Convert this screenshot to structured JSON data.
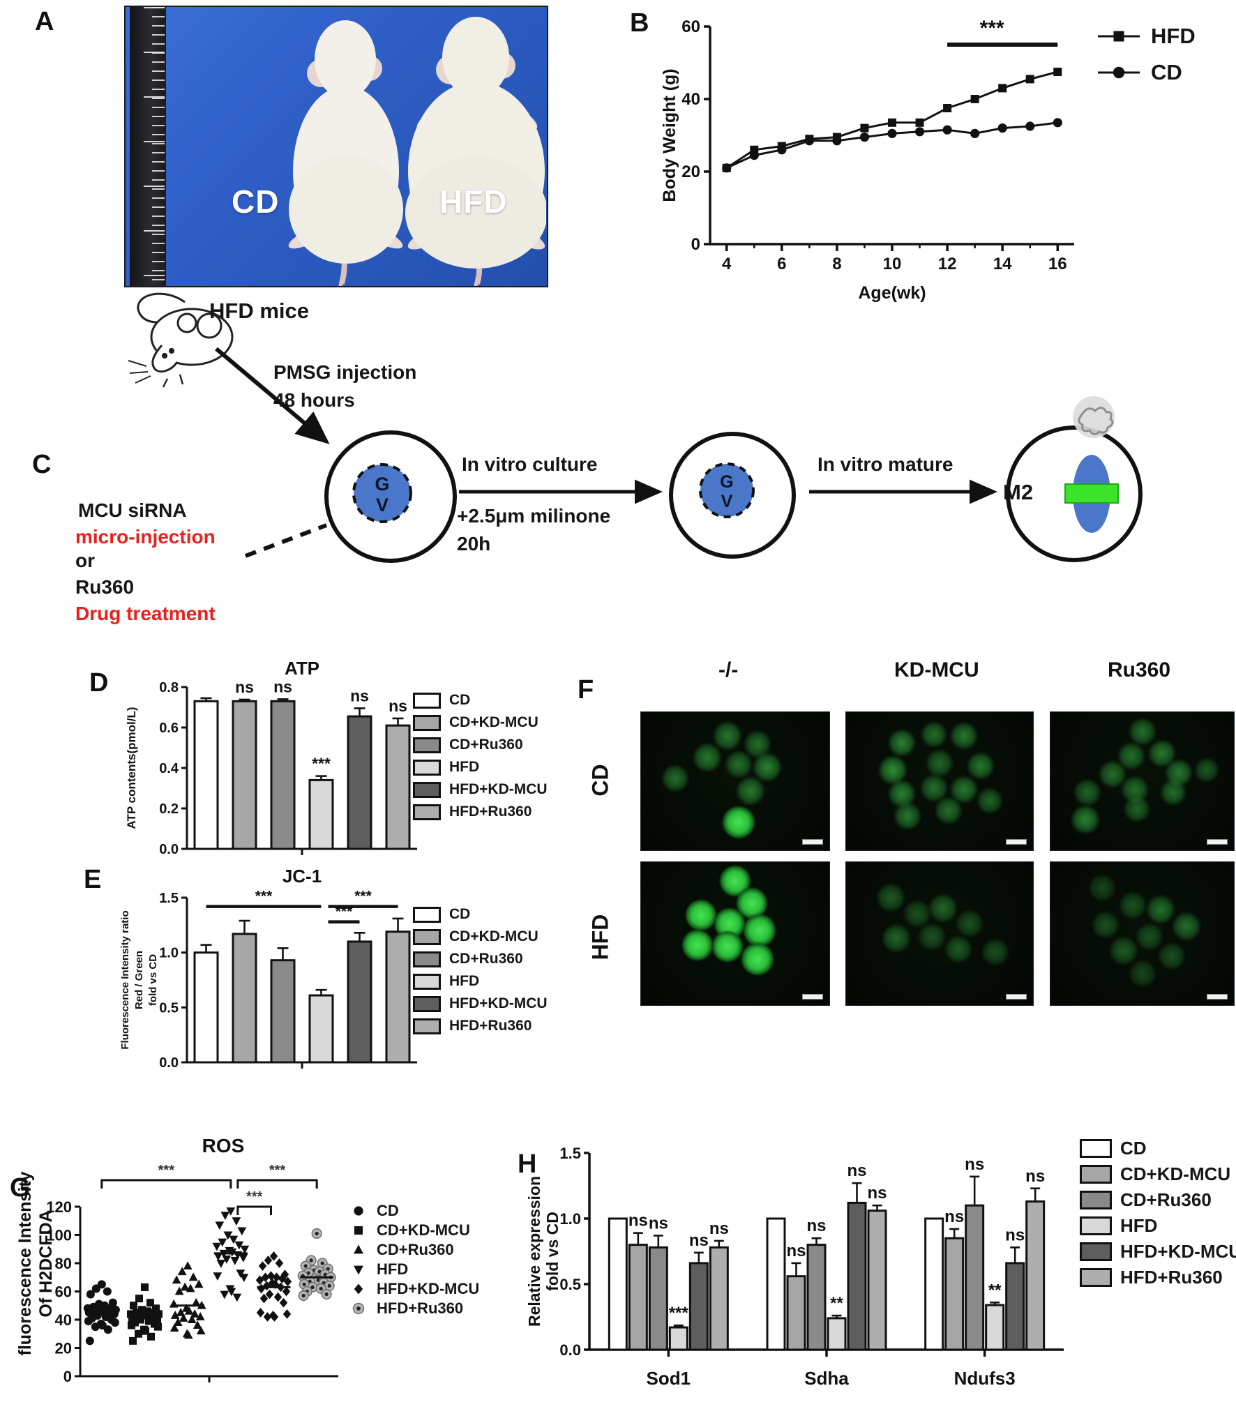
{
  "groups": {
    "labels": [
      "CD",
      "CD+KD-MCU",
      "CD+Ru360",
      "HFD",
      "HFD+KD-MCU",
      "HFD+Ru360"
    ],
    "fills": [
      "#ffffff",
      "#a6a6a6",
      "#8a8a8a",
      "#d9d9d9",
      "#5e5e5e",
      "#aeaeae"
    ],
    "scatter_markers": [
      "circle",
      "square",
      "triangle-up",
      "triangle-down",
      "diamond",
      "circle-dot"
    ]
  },
  "colors": {
    "photo_blue": "#2f5ec7",
    "red_text": "#e8211d",
    "nucleus_blue": "#4a77c9",
    "spindle_green": "#3ce32b",
    "micrograph_green": "#35c437"
  },
  "panelA": {
    "label": "A",
    "mouse_left_label": "CD",
    "mouse_right_label": "HFD"
  },
  "panelB": {
    "label": "B",
    "legend": [
      {
        "label": "HFD",
        "marker": "square"
      },
      {
        "label": "CD",
        "marker": "circle"
      }
    ]
  },
  "panelC": {
    "label": "C",
    "hfd_mice": "HFD mice",
    "pmsg_line1": "PMSG injection",
    "pmsg_line2": "48 hours",
    "mcu_sirna": "MCU siRNA",
    "micro_injection": "micro-injection",
    "or": "or",
    "ru360": "Ru360",
    "drug_treatment": "Drug treatment",
    "in_vitro_culture": "In vitro culture",
    "milrinone_line1": "+2.5μm milinone",
    "milrinone_line2": "20h",
    "in_vitro_mature": "In vitro mature",
    "m2": "M2",
    "gv_g": "G",
    "gv_v": "V"
  },
  "panelD": {
    "label": "D"
  },
  "panelE": {
    "label": "E"
  },
  "panelF": {
    "label": "F",
    "columns": [
      "-/-",
      "KD-MCU",
      "Ru360"
    ],
    "rows": [
      "CD",
      "HFD"
    ],
    "cells": [
      {
        "name": "cd-control",
        "oocytes": [
          [
            0.46,
            0.17,
            21,
            0.55
          ],
          [
            0.62,
            0.23,
            20,
            0.5
          ],
          [
            0.35,
            0.33,
            21,
            0.55
          ],
          [
            0.52,
            0.38,
            20,
            0.5
          ],
          [
            0.67,
            0.4,
            21,
            0.6
          ],
          [
            0.18,
            0.48,
            20,
            0.5
          ],
          [
            0.58,
            0.57,
            21,
            0.55
          ],
          [
            0.52,
            0.8,
            23,
            0.9
          ]
        ]
      },
      {
        "name": "cd-kd-mcu",
        "oocytes": [
          [
            0.3,
            0.22,
            20,
            0.6
          ],
          [
            0.47,
            0.16,
            19,
            0.5
          ],
          [
            0.63,
            0.17,
            20,
            0.55
          ],
          [
            0.25,
            0.42,
            21,
            0.65
          ],
          [
            0.5,
            0.37,
            20,
            0.45
          ],
          [
            0.72,
            0.39,
            20,
            0.55
          ],
          [
            0.3,
            0.59,
            20,
            0.6
          ],
          [
            0.47,
            0.55,
            20,
            0.5
          ],
          [
            0.63,
            0.56,
            20,
            0.55
          ],
          [
            0.33,
            0.75,
            20,
            0.55
          ],
          [
            0.55,
            0.71,
            20,
            0.5
          ],
          [
            0.77,
            0.64,
            19,
            0.45
          ]
        ]
      },
      {
        "name": "cd-ru360",
        "oocytes": [
          [
            0.5,
            0.14,
            20,
            0.5
          ],
          [
            0.44,
            0.32,
            20,
            0.5
          ],
          [
            0.61,
            0.3,
            20,
            0.55
          ],
          [
            0.34,
            0.45,
            20,
            0.5
          ],
          [
            0.7,
            0.44,
            20,
            0.55
          ],
          [
            0.85,
            0.42,
            18,
            0.4
          ],
          [
            0.2,
            0.58,
            20,
            0.45
          ],
          [
            0.46,
            0.56,
            20,
            0.5
          ],
          [
            0.67,
            0.58,
            19,
            0.5
          ],
          [
            0.19,
            0.78,
            21,
            0.6
          ],
          [
            0.47,
            0.7,
            19,
            0.45
          ]
        ]
      },
      {
        "name": "hfd-control",
        "oocytes": [
          [
            0.5,
            0.13,
            22,
            0.95
          ],
          [
            0.59,
            0.29,
            22,
            0.95
          ],
          [
            0.32,
            0.37,
            22,
            0.95
          ],
          [
            0.47,
            0.43,
            22,
            0.95
          ],
          [
            0.63,
            0.48,
            23,
            1.0
          ],
          [
            0.3,
            0.58,
            22,
            0.95
          ],
          [
            0.46,
            0.59,
            22,
            0.95
          ],
          [
            0.62,
            0.68,
            23,
            1.0
          ]
        ]
      },
      {
        "name": "hfd-kd-mcu",
        "oocytes": [
          [
            0.24,
            0.25,
            21,
            0.4
          ],
          [
            0.38,
            0.36,
            20,
            0.35
          ],
          [
            0.52,
            0.32,
            21,
            0.45
          ],
          [
            0.66,
            0.43,
            20,
            0.35
          ],
          [
            0.27,
            0.53,
            21,
            0.45
          ],
          [
            0.46,
            0.52,
            20,
            0.35
          ],
          [
            0.6,
            0.61,
            20,
            0.4
          ],
          [
            0.8,
            0.63,
            20,
            0.35
          ]
        ]
      },
      {
        "name": "hfd-ru360",
        "oocytes": [
          [
            0.28,
            0.18,
            20,
            0.3
          ],
          [
            0.45,
            0.3,
            20,
            0.35
          ],
          [
            0.6,
            0.33,
            21,
            0.5
          ],
          [
            0.3,
            0.44,
            20,
            0.35
          ],
          [
            0.74,
            0.45,
            21,
            0.5
          ],
          [
            0.54,
            0.52,
            20,
            0.35
          ],
          [
            0.4,
            0.62,
            21,
            0.4
          ],
          [
            0.66,
            0.66,
            20,
            0.35
          ],
          [
            0.5,
            0.78,
            20,
            0.3
          ]
        ]
      }
    ]
  },
  "panelG": {
    "label": "G"
  },
  "panelH": {
    "label": "H"
  },
  "chart_data": [
    {
      "panel": "B",
      "type": "line",
      "title": "",
      "x": [
        4,
        5,
        6,
        7,
        8,
        9,
        10,
        11,
        12,
        13,
        14,
        15,
        16
      ],
      "series": [
        {
          "name": "HFD",
          "marker": "square",
          "values": [
            21,
            26,
            27,
            29,
            29.5,
            32,
            33.5,
            33.5,
            37.5,
            40,
            43,
            45.5,
            47.5
          ]
        },
        {
          "name": "CD",
          "marker": "circle",
          "values": [
            21,
            24.5,
            26,
            28.5,
            28.5,
            29.5,
            30.5,
            31,
            31.5,
            30.5,
            32,
            32.5,
            33.5
          ]
        }
      ],
      "xlabel": "Age(wk)",
      "ylabel": "Body Weight (g)",
      "ylim": [
        0,
        60
      ],
      "yticks": [
        0,
        20,
        40,
        60
      ],
      "xticks": [
        4,
        6,
        8,
        10,
        12,
        14,
        16
      ],
      "xminor": [
        5,
        7,
        9,
        11,
        13,
        15
      ],
      "legend_position": "top-right",
      "grid": false,
      "sig": {
        "x1": 12,
        "x2": 16,
        "y": 55,
        "label": "***"
      }
    },
    {
      "panel": "D",
      "type": "bar",
      "title": "ATP",
      "ylabel_lines": [
        "ATP contents(pmol/L)"
      ],
      "categories": [
        "CD",
        "CD+KD-MCU",
        "CD+Ru360",
        "HFD",
        "HFD+KD-MCU",
        "HFD+Ru360"
      ],
      "values": [
        0.73,
        0.73,
        0.73,
        0.34,
        0.655,
        0.61
      ],
      "errors": [
        0.015,
        0.008,
        0.01,
        0.02,
        0.04,
        0.035
      ],
      "sig": [
        "",
        "ns",
        "ns",
        "***",
        "ns",
        "ns"
      ],
      "ylim": [
        0,
        0.8
      ],
      "yticks": [
        0,
        0.2,
        0.4,
        0.6,
        0.8
      ],
      "ytick_labels": [
        "0.0",
        "0.2",
        "0.4",
        "0.6",
        "0.8"
      ],
      "grid": false
    },
    {
      "panel": "E",
      "type": "bar",
      "title": "JC-1",
      "ylabel_lines": [
        "Fluorescence Intensity ratio",
        "Red / Green",
        "fold vs CD"
      ],
      "categories": [
        "CD",
        "CD+KD-MCU",
        "CD+Ru360",
        "HFD",
        "HFD+KD-MCU",
        "HFD+Ru360"
      ],
      "values": [
        1.0,
        1.17,
        0.93,
        0.61,
        1.1,
        1.19
      ],
      "errors": [
        0.07,
        0.12,
        0.11,
        0.05,
        0.08,
        0.12
      ],
      "sig": [
        "",
        "",
        "",
        "",
        "",
        ""
      ],
      "brackets": [
        {
          "from": 0,
          "to": 3,
          "y": 1.42,
          "label": "***"
        },
        {
          "from": 3,
          "to": 4,
          "y": 1.28,
          "label": "***"
        },
        {
          "from": 3,
          "to": 5,
          "y": 1.42,
          "label": "***"
        }
      ],
      "ylim": [
        0,
        1.5
      ],
      "yticks": [
        0,
        0.5,
        1,
        1.5
      ],
      "ytick_labels": [
        "0.0",
        "0.5",
        "1.0",
        "1.5"
      ],
      "grid": false
    },
    {
      "panel": "G",
      "type": "scatter",
      "title": "ROS",
      "ylabel_lines": [
        "fluorescence Intensity",
        "Of H2DCFDA"
      ],
      "ylim": [
        0,
        120
      ],
      "yticks": [
        0,
        20,
        40,
        60,
        80,
        100,
        120
      ],
      "grid": false,
      "groups": [
        {
          "name": "CD",
          "marker": "circle",
          "mean": 45,
          "points": [
            65,
            62,
            60,
            58,
            52,
            51,
            50,
            49,
            48,
            48,
            47,
            47,
            46,
            46,
            45,
            45,
            44,
            43,
            42,
            41,
            40,
            39,
            38,
            37,
            36,
            35,
            33,
            25
          ]
        },
        {
          "name": "CD+KD-MCU",
          "marker": "square",
          "mean": 43,
          "points": [
            63,
            55,
            52,
            50,
            48,
            47,
            46,
            45,
            45,
            44,
            44,
            43,
            43,
            42,
            42,
            41,
            40,
            40,
            39,
            38,
            37,
            36,
            35,
            33,
            32,
            30,
            28,
            25
          ]
        },
        {
          "name": "CD+Ru360",
          "marker": "triangle-up",
          "mean": 50,
          "points": [
            78,
            74,
            70,
            68,
            65,
            63,
            62,
            60,
            52,
            51,
            50,
            48,
            46,
            45,
            44,
            43,
            42,
            41,
            40,
            38,
            36,
            34,
            32,
            30,
            29
          ]
        },
        {
          "name": "HFD",
          "marker": "triangle-down",
          "mean": 87,
          "points": [
            117,
            114,
            110,
            107,
            103,
            100,
            97,
            95,
            93,
            92,
            90,
            89,
            88,
            87,
            86,
            85,
            84,
            83,
            82,
            80,
            73,
            71,
            70,
            62,
            60,
            58,
            56
          ]
        },
        {
          "name": "HFD+KD-MCU",
          "marker": "diamond",
          "mean": 63,
          "points": [
            85,
            82,
            80,
            78,
            72,
            71,
            70,
            70,
            69,
            68,
            67,
            66,
            65,
            64,
            63,
            62,
            60,
            58,
            56,
            55,
            52,
            45,
            44,
            43,
            42,
            42
          ]
        },
        {
          "name": "HFD+Ru360",
          "marker": "circle-dot",
          "mean": 70,
          "points": [
            101,
            82,
            80,
            78,
            76,
            75,
            74,
            73,
            72,
            71,
            70,
            69,
            68,
            67,
            66,
            65,
            64,
            63,
            62,
            60,
            58,
            57
          ]
        }
      ],
      "brackets": [
        {
          "from": 0,
          "to": 3,
          "label": "***",
          "level": 0
        },
        {
          "from": 3,
          "to": 5,
          "label": "***",
          "level": 0
        },
        {
          "from": 3,
          "to": 4,
          "label": "***",
          "level": 1
        }
      ]
    },
    {
      "panel": "H",
      "type": "grouped-bar",
      "title": "",
      "ylabel_lines": [
        "Relative expression",
        "fold vs CD"
      ],
      "categories": [
        "Sod1",
        "Sdha",
        "Ndufs3"
      ],
      "series": [
        {
          "name": "CD",
          "values": [
            1.0,
            1.0,
            1.0
          ],
          "errors": [
            0,
            0,
            0
          ],
          "sig": [
            "",
            "",
            ""
          ]
        },
        {
          "name": "CD+KD-MCU",
          "values": [
            0.8,
            0.56,
            0.85
          ],
          "errors": [
            0.09,
            0.1,
            0.07
          ],
          "sig": [
            "ns",
            "ns",
            "ns"
          ]
        },
        {
          "name": "CD+Ru360",
          "values": [
            0.78,
            0.8,
            1.1
          ],
          "errors": [
            0.09,
            0.05,
            0.22
          ],
          "sig": [
            "ns",
            "ns",
            "ns"
          ]
        },
        {
          "name": "HFD",
          "values": [
            0.17,
            0.24,
            0.34
          ],
          "errors": [
            0.015,
            0.02,
            0.02
          ],
          "sig": [
            "***",
            "**",
            "**"
          ]
        },
        {
          "name": "HFD+KD-MCU",
          "values": [
            0.66,
            1.12,
            0.66
          ],
          "errors": [
            0.08,
            0.15,
            0.12
          ],
          "sig": [
            "ns",
            "ns",
            "ns"
          ]
        },
        {
          "name": "HFD+Ru360",
          "values": [
            0.78,
            1.06,
            1.13
          ],
          "errors": [
            0.05,
            0.04,
            0.1
          ],
          "sig": [
            "ns",
            "ns",
            "ns"
          ]
        }
      ],
      "ylim": [
        0,
        1.5
      ],
      "yticks": [
        0,
        0.5,
        1,
        1.5
      ],
      "ytick_labels": [
        "0.0",
        "0.5",
        "1.0",
        "1.5"
      ],
      "legend_position": "top-right",
      "grid": false
    }
  ]
}
